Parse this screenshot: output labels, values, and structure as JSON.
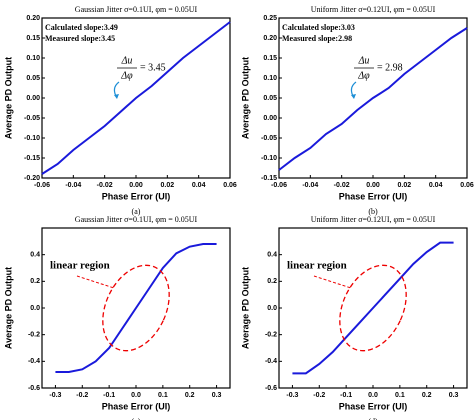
{
  "chart_data": [
    {
      "type": "line",
      "title": "Gaussian Jitter σ=0.1UI,  φm = 0.05UI",
      "xlabel": "Phase Error (UI)",
      "ylabel": "Average PD Output",
      "caption": "(a)",
      "notes": [
        "Calculated slope:3.49",
        "Measured slope:3.45"
      ],
      "fraction": {
        "numerator": "Δu",
        "denominator": "Δφ",
        "result": "= 3.45"
      },
      "x": [
        -0.06,
        -0.05,
        -0.04,
        -0.03,
        -0.02,
        -0.01,
        0,
        0.01,
        0.02,
        0.03,
        0.04,
        0.05,
        0.06
      ],
      "series": [
        {
          "color": "#1a1adb",
          "values": [
            -0.19,
            -0.165,
            -0.13,
            -0.1,
            -0.07,
            -0.035,
            0.0,
            0.03,
            0.065,
            0.1,
            0.13,
            0.16,
            0.19
          ]
        }
      ],
      "xlim": [
        -0.06,
        0.06
      ],
      "xticks": [
        -0.06,
        -0.04,
        -0.02,
        {
          "value": 0,
          "label": "0.00"
        },
        0.02,
        0.04,
        0.06
      ],
      "ylim": [
        -0.2,
        0.2
      ],
      "yticks": [
        {
          "value": -0.2,
          "label": "-0.20"
        },
        -0.15,
        {
          "value": -0.1,
          "label": "-0.10"
        },
        -0.05,
        {
          "value": 0,
          "label": "0.00"
        },
        0.05,
        {
          "value": 0.1,
          "label": "0.10"
        },
        0.15,
        {
          "value": 0.2,
          "label": "0.20"
        }
      ]
    },
    {
      "type": "line",
      "title": "Uniform Jitter  σ=0.12UI,  φm = 0.05UI",
      "xlabel": "Phase Error (UI)",
      "ylabel": "Average PD Output",
      "caption": "(b)",
      "notes": [
        "Calculated slope:3.03",
        "Measured slope:2.98"
      ],
      "fraction": {
        "numerator": "Δu",
        "denominator": "Δφ",
        "result": "= 2.98"
      },
      "x": [
        -0.06,
        -0.05,
        -0.04,
        -0.03,
        -0.02,
        -0.01,
        0,
        0.01,
        0.02,
        0.03,
        0.04,
        0.05,
        0.06
      ],
      "series": [
        {
          "color": "#1a1adb",
          "values": [
            -0.13,
            -0.1,
            -0.075,
            -0.04,
            -0.015,
            0.02,
            0.05,
            0.075,
            0.11,
            0.14,
            0.17,
            0.2,
            0.225
          ]
        }
      ],
      "xlim": [
        -0.06,
        0.06
      ],
      "xticks": [
        -0.06,
        -0.04,
        -0.02,
        {
          "value": 0,
          "label": "0.00"
        },
        0.02,
        0.04,
        0.06
      ],
      "ylim": [
        -0.15,
        0.25
      ],
      "yticks": [
        -0.15,
        {
          "value": -0.1,
          "label": "-0.10"
        },
        -0.05,
        {
          "value": 0,
          "label": "0.00"
        },
        0.05,
        {
          "value": 0.1,
          "label": "0.10"
        },
        0.15,
        {
          "value": 0.2,
          "label": "0.20"
        },
        0.25
      ]
    },
    {
      "type": "line",
      "title": "Gaussian Jitter  σ=0.1UI,  φm = 0.05UI",
      "xlabel": "Phase Error (UI)",
      "ylabel": "Average PD Output",
      "caption": "(c)",
      "region_label": "linear region",
      "x": [
        -0.3,
        -0.25,
        -0.2,
        -0.15,
        -0.1,
        -0.05,
        0,
        0.05,
        0.1,
        0.15,
        0.2,
        0.25,
        0.3
      ],
      "series": [
        {
          "color": "#1a1adb",
          "values": [
            -0.48,
            -0.48,
            -0.46,
            -0.4,
            -0.3,
            -0.15,
            0.0,
            0.15,
            0.3,
            0.41,
            0.46,
            0.48,
            0.48
          ]
        }
      ],
      "xlim": [
        -0.35,
        0.35
      ],
      "xticks": [
        -0.3,
        -0.2,
        -0.1,
        {
          "value": 0,
          "label": "0.0"
        },
        0.1,
        0.2,
        0.3
      ],
      "ylim": [
        -0.6,
        0.6
      ],
      "yticks": [
        -0.6,
        -0.4,
        -0.2,
        {
          "value": 0,
          "label": "0.0"
        },
        0.2,
        0.4
      ]
    },
    {
      "type": "line",
      "title": "Uniform Jitter  σ=0.12UI,  φm = 0.05UI",
      "xlabel": "Phase Error (UI)",
      "ylabel": "Average PD Output",
      "caption": "(d)",
      "region_label": "linear region",
      "x": [
        -0.3,
        -0.25,
        -0.2,
        -0.15,
        -0.1,
        -0.05,
        0,
        0.05,
        0.1,
        0.15,
        0.2,
        0.25,
        0.3
      ],
      "series": [
        {
          "color": "#1a1adb",
          "values": [
            -0.49,
            -0.49,
            -0.42,
            -0.33,
            -0.22,
            -0.11,
            0.0,
            0.11,
            0.22,
            0.33,
            0.42,
            0.49,
            0.49
          ]
        }
      ],
      "xlim": [
        -0.35,
        0.35
      ],
      "xticks": [
        -0.3,
        -0.2,
        -0.1,
        {
          "value": 0,
          "label": "0.0"
        },
        0.1,
        0.2,
        0.3
      ],
      "ylim": [
        -0.6,
        0.6
      ],
      "yticks": [
        -0.6,
        -0.4,
        -0.2,
        {
          "value": 0,
          "label": "0.0"
        },
        0.2,
        0.4
      ]
    }
  ]
}
